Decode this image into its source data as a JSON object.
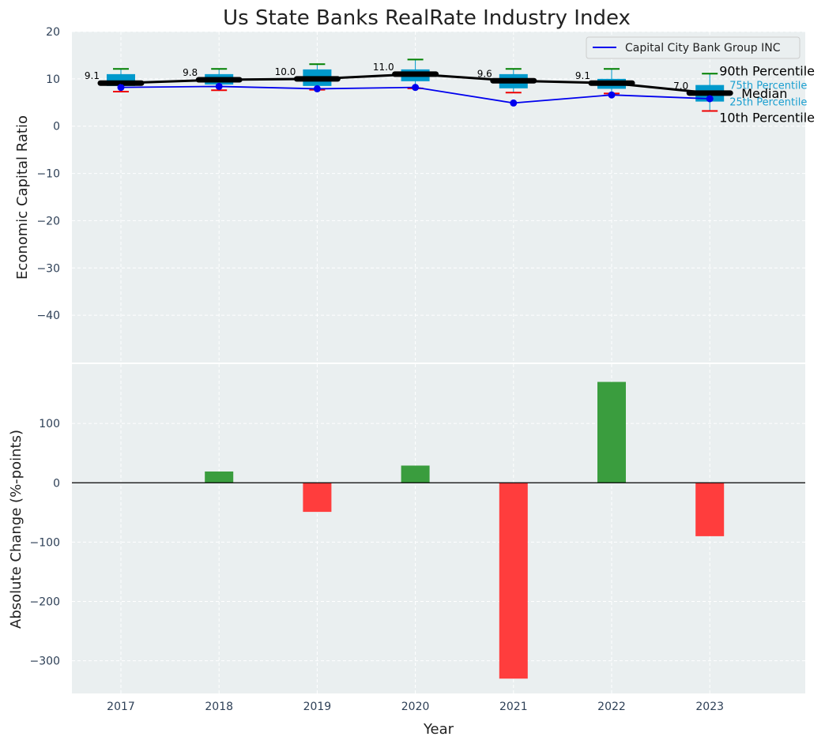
{
  "chart_data": [
    {
      "type": "box",
      "title": "Us State Banks RealRate Industry Index",
      "ylabel": "Economic Capital Ratio",
      "ylim": [
        -50,
        20
      ],
      "yticks": [
        20,
        10,
        0,
        -10,
        -20,
        -30,
        -40
      ],
      "categories": [
        "2017",
        "2018",
        "2019",
        "2020",
        "2021",
        "2022",
        "2023"
      ],
      "percentiles": {
        "p10": [
          7.3,
          7.6,
          7.7,
          8.0,
          7.1,
          6.9,
          3.2
        ],
        "p25": [
          8.5,
          8.8,
          8.5,
          9.5,
          8.0,
          7.9,
          5.2
        ],
        "median": [
          9.1,
          9.8,
          10.0,
          11.0,
          9.6,
          9.1,
          7.0
        ],
        "p75": [
          11.0,
          11.0,
          12.0,
          12.0,
          11.0,
          10.0,
          8.7
        ],
        "p90": [
          12.1,
          12.1,
          13.1,
          14.1,
          12.1,
          12.1,
          11.1
        ]
      },
      "median_labels": [
        "9.1",
        "9.8",
        "10.0",
        "11.0",
        "9.6",
        "9.1",
        "7.0"
      ],
      "series": [
        {
          "name": "Capital City Bank Group INC",
          "values": [
            8.2,
            8.4,
            7.9,
            8.2,
            4.9,
            6.6,
            5.8
          ]
        }
      ],
      "legend": {
        "position": "top-right",
        "entries": [
          "Capital City Bank Group INC"
        ]
      },
      "annotations": {
        "p90": "90th Percentile",
        "p75": "75th Percentile",
        "median": "Median",
        "p25": "25th Percentile",
        "p10": "10th Percentile"
      },
      "grid": true
    },
    {
      "type": "bar",
      "ylabel": "Absolute Change (%-points)",
      "xlabel": "Year",
      "ylim": [
        -355,
        200
      ],
      "yticks": [
        100,
        0,
        -100,
        -200,
        -300
      ],
      "categories": [
        "2017",
        "2018",
        "2019",
        "2020",
        "2021",
        "2022",
        "2023"
      ],
      "values": [
        null,
        19,
        -49,
        29,
        -330,
        170,
        -90
      ],
      "grid": true
    }
  ],
  "colors": {
    "background": "#eaeff0",
    "box": "#0099cc",
    "median": "#000000",
    "series_line": "#0000ee",
    "whisker_high": "#008000",
    "whisker_low": "#ee0000",
    "positive": "#3a9d3e",
    "negative": "#ff3d3d",
    "grid": "#ffffff",
    "tick_text": "#2e4057",
    "percentile_text": "#1a9fd0"
  }
}
